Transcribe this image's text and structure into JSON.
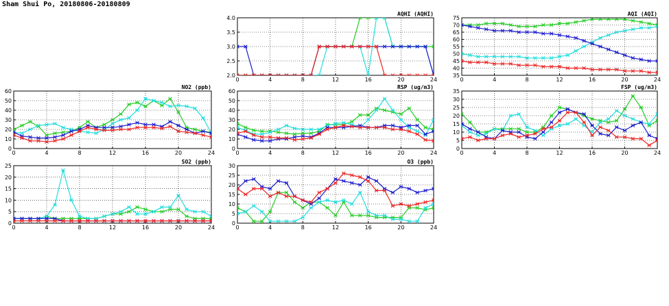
{
  "page": {
    "title": "Sham Shui Po, 20180806-20180809"
  },
  "colors": {
    "green": "#22cc22",
    "cyan": "#22dddd",
    "blue": "#1a1acc",
    "red": "#ee2222",
    "grid": "#000000"
  },
  "chart_data": [
    {
      "id": "aqhi",
      "type": "line",
      "title": "AQHI (AQHI)",
      "xlim": [
        0,
        24
      ],
      "ylim": [
        2,
        4
      ],
      "xticks": [
        0,
        4,
        8,
        12,
        16,
        20,
        24
      ],
      "yticks": [
        2.0,
        2.5,
        3.0,
        3.5,
        4.0
      ],
      "ytick_labels": [
        "2.0",
        "2.5",
        "3.0",
        "3.5",
        "4.0"
      ],
      "x": [
        0,
        1,
        2,
        3,
        4,
        5,
        6,
        7,
        8,
        9,
        10,
        11,
        12,
        13,
        14,
        15,
        16,
        17,
        18,
        19,
        20,
        21,
        22,
        23,
        24
      ],
      "series": [
        {
          "color": "green",
          "values": [
            2,
            2,
            2,
            2,
            2,
            2,
            2,
            2,
            2,
            2,
            3,
            3,
            3,
            3,
            3,
            4,
            4,
            4,
            4,
            3,
            3,
            3,
            3,
            3,
            3
          ]
        },
        {
          "color": "cyan",
          "values": [
            2,
            2,
            2,
            2,
            2,
            2,
            2,
            2,
            2,
            2,
            2,
            3,
            3,
            3,
            3,
            3,
            2,
            4,
            4,
            3,
            3,
            3,
            3,
            3,
            2
          ]
        },
        {
          "color": "blue",
          "values": [
            3,
            3,
            2,
            2,
            2,
            2,
            2,
            2,
            2,
            2,
            3,
            3,
            3,
            3,
            3,
            3,
            3,
            3,
            3,
            3,
            3,
            3,
            3,
            3,
            2
          ]
        },
        {
          "color": "red",
          "values": [
            2,
            2,
            2,
            2,
            2,
            2,
            2,
            2,
            2,
            2,
            3,
            3,
            3,
            3,
            3,
            3,
            3,
            3,
            2,
            2,
            2,
            2,
            2,
            2,
            2
          ]
        }
      ]
    },
    {
      "id": "aqi",
      "type": "line",
      "title": "AQI (AQI)",
      "xlim": [
        0,
        24
      ],
      "ylim": [
        35,
        75
      ],
      "xticks": [
        0,
        4,
        8,
        12,
        16,
        20,
        24
      ],
      "yticks": [
        35,
        40,
        45,
        50,
        55,
        60,
        65,
        70,
        75
      ],
      "ytick_labels": [
        "35",
        "40",
        "45",
        "50",
        "55",
        "60",
        "65",
        "70",
        "75"
      ],
      "x": [
        0,
        1,
        2,
        3,
        4,
        5,
        6,
        7,
        8,
        9,
        10,
        11,
        12,
        13,
        14,
        15,
        16,
        17,
        18,
        19,
        20,
        21,
        22,
        23,
        24
      ],
      "series": [
        {
          "color": "green",
          "values": [
            70,
            70,
            70,
            71,
            71,
            71,
            70,
            69,
            69,
            69,
            70,
            70,
            71,
            71,
            72,
            73,
            74,
            74,
            74,
            74,
            74,
            73,
            72,
            71,
            70
          ]
        },
        {
          "color": "cyan",
          "values": [
            50,
            49,
            48,
            48,
            48,
            48,
            48,
            48,
            47,
            47,
            47,
            47,
            48,
            49,
            52,
            55,
            58,
            61,
            63,
            65,
            66,
            67,
            68,
            68,
            69
          ]
        },
        {
          "color": "blue",
          "values": [
            70,
            69,
            68,
            67,
            66,
            66,
            66,
            65,
            65,
            65,
            64,
            64,
            63,
            62,
            61,
            59,
            57,
            55,
            53,
            51,
            49,
            47,
            46,
            45,
            45
          ]
        },
        {
          "color": "red",
          "values": [
            45,
            44,
            44,
            44,
            43,
            43,
            43,
            42,
            42,
            42,
            41,
            41,
            41,
            40,
            40,
            40,
            39,
            39,
            39,
            39,
            38,
            38,
            38,
            37,
            37
          ]
        }
      ]
    },
    {
      "id": "no2",
      "type": "line",
      "title": "NO2 (ppb)",
      "xlim": [
        0,
        24
      ],
      "ylim": [
        0,
        60
      ],
      "xticks": [
        0,
        4,
        8,
        12,
        16,
        20,
        24
      ],
      "yticks": [
        0,
        10,
        20,
        30,
        40,
        50,
        60
      ],
      "ytick_labels": [
        "0",
        "10",
        "20",
        "30",
        "40",
        "50",
        "60"
      ],
      "x": [
        0,
        1,
        2,
        3,
        4,
        5,
        6,
        7,
        8,
        9,
        10,
        11,
        12,
        13,
        14,
        15,
        16,
        17,
        18,
        19,
        20,
        21,
        22,
        23,
        24
      ],
      "series": [
        {
          "color": "green",
          "values": [
            20,
            24,
            28,
            23,
            14,
            16,
            17,
            18,
            22,
            28,
            22,
            25,
            30,
            36,
            46,
            48,
            44,
            50,
            45,
            52,
            38,
            22,
            20,
            18,
            17
          ]
        },
        {
          "color": "cyan",
          "values": [
            17,
            16,
            20,
            24,
            25,
            26,
            22,
            20,
            18,
            17,
            16,
            20,
            26,
            30,
            32,
            40,
            52,
            50,
            48,
            44,
            45,
            44,
            42,
            32,
            16
          ]
        },
        {
          "color": "blue",
          "values": [
            17,
            13,
            12,
            11,
            11,
            12,
            14,
            18,
            20,
            24,
            22,
            22,
            22,
            23,
            25,
            27,
            25,
            25,
            23,
            28,
            24,
            20,
            16,
            18,
            16
          ]
        },
        {
          "color": "red",
          "values": [
            14,
            11,
            8,
            8,
            7,
            8,
            10,
            14,
            18,
            22,
            20,
            19,
            19,
            20,
            20,
            22,
            22,
            22,
            21,
            23,
            18,
            17,
            16,
            14,
            12
          ]
        }
      ]
    },
    {
      "id": "rsp",
      "type": "line",
      "title": "RSP (ug/m3)",
      "xlim": [
        0,
        24
      ],
      "ylim": [
        0,
        60
      ],
      "xticks": [
        0,
        4,
        8,
        12,
        16,
        20,
        24
      ],
      "yticks": [
        0,
        10,
        20,
        30,
        40,
        50,
        60
      ],
      "ytick_labels": [
        "0",
        "10",
        "20",
        "30",
        "40",
        "50",
        "60"
      ],
      "x": [
        0,
        1,
        2,
        3,
        4,
        5,
        6,
        7,
        8,
        9,
        10,
        11,
        12,
        13,
        14,
        15,
        16,
        17,
        18,
        19,
        20,
        21,
        22,
        23,
        24
      ],
      "series": [
        {
          "color": "green",
          "values": [
            26,
            22,
            19,
            18,
            18,
            17,
            16,
            15,
            16,
            16,
            18,
            25,
            25,
            25,
            28,
            35,
            35,
            42,
            40,
            38,
            36,
            42,
            30,
            22,
            20
          ]
        },
        {
          "color": "cyan",
          "values": [
            22,
            19,
            15,
            15,
            17,
            20,
            24,
            21,
            20,
            20,
            20,
            24,
            26,
            27,
            25,
            22,
            30,
            40,
            52,
            40,
            30,
            22,
            18,
            14,
            30
          ]
        },
        {
          "color": "blue",
          "values": [
            15,
            12,
            9,
            8,
            8,
            10,
            10,
            12,
            13,
            12,
            16,
            22,
            22,
            22,
            23,
            24,
            22,
            22,
            24,
            24,
            22,
            24,
            24,
            15,
            18
          ]
        },
        {
          "color": "red",
          "values": [
            16,
            18,
            14,
            12,
            12,
            11,
            11,
            9,
            10,
            11,
            15,
            20,
            22,
            24,
            23,
            22,
            22,
            22,
            22,
            20,
            20,
            18,
            15,
            9,
            8
          ]
        }
      ]
    },
    {
      "id": "fsp",
      "type": "line",
      "title": "FSP (ug/m3)",
      "xlim": [
        0,
        24
      ],
      "ylim": [
        0,
        35
      ],
      "xticks": [
        0,
        4,
        8,
        12,
        16,
        20,
        24
      ],
      "yticks": [
        0,
        5,
        10,
        15,
        20,
        25,
        30,
        35
      ],
      "ytick_labels": [
        "0",
        "5",
        "10",
        "15",
        "20",
        "25",
        "30",
        "35"
      ],
      "x": [
        0,
        1,
        2,
        3,
        4,
        5,
        6,
        7,
        8,
        9,
        10,
        11,
        12,
        13,
        14,
        15,
        16,
        17,
        18,
        19,
        20,
        21,
        22,
        23,
        24
      ],
      "series": [
        {
          "color": "green",
          "values": [
            21,
            16,
            10,
            10,
            12,
            12,
            12,
            12,
            10,
            10,
            13,
            20,
            25,
            24,
            22,
            20,
            18,
            17,
            16,
            17,
            24,
            32,
            25,
            14,
            17
          ]
        },
        {
          "color": "cyan",
          "values": [
            14,
            10,
            8,
            9,
            12,
            11,
            20,
            21,
            13,
            11,
            8,
            12,
            14,
            15,
            18,
            14,
            10,
            16,
            18,
            23,
            20,
            18,
            16,
            15,
            21
          ]
        },
        {
          "color": "blue",
          "values": [
            15,
            12,
            10,
            7,
            6,
            11,
            10,
            10,
            7,
            6,
            10,
            16,
            22,
            24,
            22,
            21,
            14,
            9,
            8,
            13,
            11,
            14,
            16,
            8,
            6
          ]
        },
        {
          "color": "red",
          "values": [
            6,
            7,
            5,
            6,
            6,
            8,
            9,
            7,
            8,
            9,
            12,
            13,
            17,
            22,
            22,
            16,
            8,
            13,
            11,
            7,
            7,
            6,
            6,
            2,
            5
          ]
        }
      ]
    },
    {
      "id": "so2",
      "type": "line",
      "title": "SO2 (ppb)",
      "xlim": [
        0,
        24
      ],
      "ylim": [
        0,
        25
      ],
      "xticks": [
        0,
        4,
        8,
        12,
        16,
        20,
        24
      ],
      "yticks": [
        0,
        5,
        10,
        15,
        20,
        25
      ],
      "ytick_labels": [
        "0",
        "5",
        "10",
        "15",
        "20",
        "25"
      ],
      "x": [
        0,
        1,
        2,
        3,
        4,
        5,
        6,
        7,
        8,
        9,
        10,
        11,
        12,
        13,
        14,
        15,
        16,
        17,
        18,
        19,
        20,
        21,
        22,
        23,
        24
      ],
      "series": [
        {
          "color": "green",
          "values": [
            2,
            2,
            2,
            2,
            3,
            2,
            2,
            2,
            2,
            2,
            2,
            3,
            4,
            4,
            5,
            7,
            6,
            5,
            5,
            6,
            6,
            3,
            2,
            2,
            2
          ]
        },
        {
          "color": "cyan",
          "values": [
            2,
            2,
            2,
            2,
            3,
            8,
            23,
            10,
            3,
            2,
            2,
            3,
            4,
            5,
            7,
            4,
            4,
            5,
            7,
            7,
            12,
            6,
            5,
            5,
            3
          ]
        },
        {
          "color": "blue",
          "values": [
            2,
            2,
            2,
            2,
            2,
            2,
            1,
            1,
            1,
            1,
            1,
            1,
            1,
            1,
            1,
            1,
            1,
            1,
            1,
            1,
            1,
            1,
            1,
            1,
            1
          ]
        },
        {
          "color": "red",
          "values": [
            1,
            1,
            1,
            1,
            1,
            1,
            1,
            1,
            1,
            1,
            1,
            1,
            1,
            1,
            1,
            1,
            1,
            1,
            1,
            1,
            1,
            1,
            1,
            1,
            1
          ]
        }
      ]
    },
    {
      "id": "o3",
      "type": "line",
      "title": "O3 (ppb)",
      "xlim": [
        0,
        24
      ],
      "ylim": [
        0,
        30
      ],
      "xticks": [
        0,
        4,
        8,
        12,
        16,
        20,
        24
      ],
      "yticks": [
        0,
        5,
        10,
        15,
        20,
        25,
        30
      ],
      "ytick_labels": [
        "0",
        "5",
        "10",
        "15",
        "20",
        "25",
        "30"
      ],
      "x": [
        0,
        1,
        2,
        3,
        4,
        5,
        6,
        7,
        8,
        9,
        10,
        11,
        12,
        13,
        14,
        15,
        16,
        17,
        18,
        19,
        20,
        21,
        22,
        23,
        24
      ],
      "series": [
        {
          "color": "green",
          "values": [
            8,
            6,
            1,
            1,
            6,
            16,
            16,
            11,
            8,
            11,
            11,
            8,
            4,
            11,
            4,
            4,
            4,
            3,
            3,
            3,
            3,
            8,
            8,
            7,
            8
          ]
        },
        {
          "color": "cyan",
          "values": [
            5,
            6,
            9,
            6,
            1,
            1,
            1,
            1,
            3,
            8,
            11,
            12,
            11,
            12,
            10,
            16,
            6,
            4,
            4,
            2,
            2,
            1,
            1,
            8,
            10
          ]
        },
        {
          "color": "blue",
          "values": [
            18,
            22,
            23,
            19,
            18,
            22,
            21,
            14,
            12,
            10,
            13,
            18,
            23,
            22,
            21,
            20,
            24,
            22,
            18,
            16,
            19,
            18,
            16,
            17,
            18
          ]
        },
        {
          "color": "red",
          "values": [
            18,
            15,
            18,
            18,
            14,
            16,
            14,
            14,
            12,
            11,
            16,
            18,
            21,
            26,
            25,
            24,
            22,
            17,
            17,
            9,
            10,
            9,
            10,
            11,
            12
          ]
        }
      ]
    }
  ]
}
